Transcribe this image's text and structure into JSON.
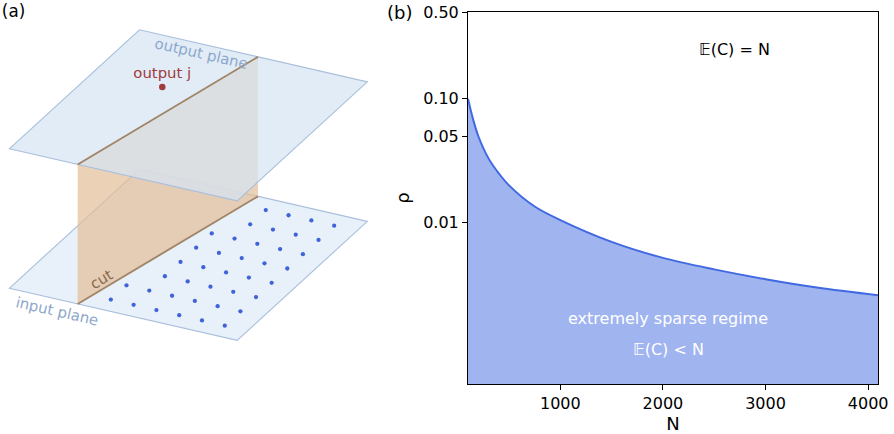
{
  "diagram": {
    "panel_label": "(a)",
    "output_plane": "output plane",
    "input_plane": "input plane",
    "cut": "cut",
    "output": "output j"
  },
  "chart_data": {
    "type": "area",
    "panel_label": "(b)",
    "x_label": "N",
    "y_label": "ρ",
    "log": "y",
    "grid": false,
    "xlim": [
      100,
      4096
    ],
    "xticks": [
      1000,
      2000,
      3000,
      4000
    ],
    "ylim": [
      0.0005,
      0.5
    ],
    "yticks": [
      {
        "value": 0.5,
        "label": "0.50"
      },
      {
        "value": 0.1,
        "label": "0.10"
      },
      0.05,
      0.01
    ],
    "x": [
      100,
      150,
      200,
      300,
      400,
      500,
      750,
      1000,
      1500,
      2000,
      2500,
      3000,
      3500,
      4096
    ],
    "series": [
      {
        "color": "#4169e1",
        "values": [
          0.1,
          0.068,
          0.05,
          0.033,
          0.025,
          0.02,
          0.0135,
          0.0105,
          0.007,
          0.0052,
          0.0042,
          0.0035,
          0.003,
          0.0026
        ]
      }
    ],
    "annotations": [
      {
        "text": "𝔼(C) = N",
        "x": 2700,
        "y": 0.25,
        "color": "#000000"
      },
      {
        "text": "extremely sparse regime",
        "x": 2050,
        "y": 0.0017,
        "color": "#ffffff"
      },
      {
        "text": "𝔼(C) < N",
        "x": 2050,
        "y": 0.00095,
        "color": "#ffffff"
      }
    ]
  }
}
